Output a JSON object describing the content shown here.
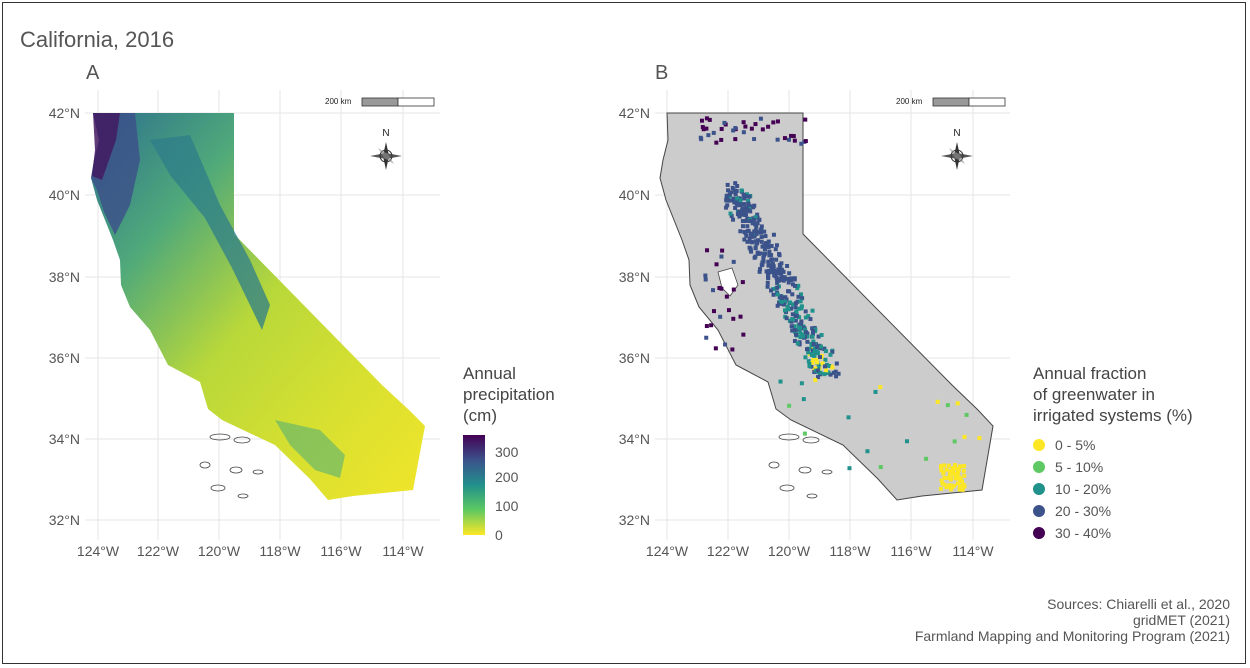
{
  "figure": {
    "title": "California, 2016",
    "sources": [
      "Sources: Chiarelli et al., 2020",
      "gridMET (2021)",
      "Farmland Mapping and Monitoring Program (2021)"
    ]
  },
  "axes": {
    "lat_labels": [
      "42°N",
      "40°N",
      "38°N",
      "36°N",
      "34°N",
      "32°N"
    ],
    "lon_labels": [
      "124°W",
      "122°W",
      "120°W",
      "118°W",
      "116°W",
      "114°W"
    ]
  },
  "panel_a": {
    "label": "A",
    "scale_text": "200 km",
    "north_label": "N",
    "legend": {
      "title_lines": [
        "Annual",
        "precipitation",
        "(cm)"
      ],
      "ticks": [
        "300",
        "200",
        "100",
        "0"
      ],
      "colors": [
        "#440154",
        "#3b528b",
        "#21918c",
        "#5ec962",
        "#fde725"
      ]
    }
  },
  "panel_b": {
    "label": "B",
    "scale_text": "200 km",
    "north_label": "N",
    "legend": {
      "title_lines": [
        "Annual fraction",
        "of greenwater in",
        "irrigated systems (%)"
      ],
      "items": [
        {
          "label": "0 - 5%",
          "color": "#fde725"
        },
        {
          "label": "5 - 10%",
          "color": "#5ec962"
        },
        {
          "label": "10 - 20%",
          "color": "#21918c"
        },
        {
          "label": "20 - 30%",
          "color": "#3b528b"
        },
        {
          "label": "30 - 40%",
          "color": "#440154"
        }
      ]
    }
  }
}
